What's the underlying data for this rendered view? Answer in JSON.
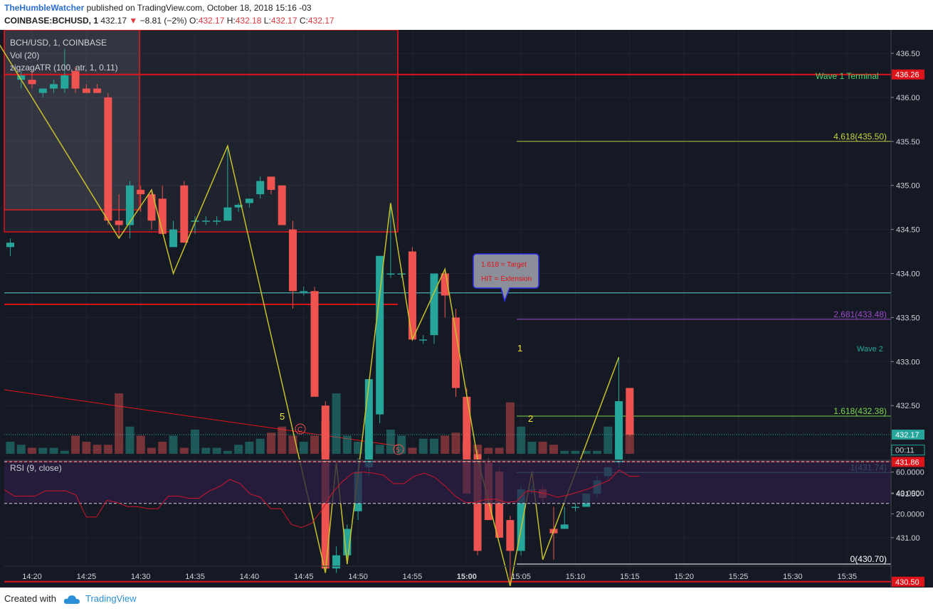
{
  "header": {
    "author": "TheHumbleWatcher",
    "published": "published on TradingView.com, October 18, 2018 15:16 -03",
    "symbol": "COINBASE:BCHUSD, 1",
    "price": "432.17",
    "change": "−8.81 (−2%)",
    "o_label": "O:",
    "o": "432.17",
    "h_label": "H:",
    "h": "432.18",
    "l_label": "L:",
    "l": "432.17",
    "c_label": "C:",
    "c": "432.17"
  },
  "legend": {
    "main": "BCH/USD, 1, COINBASE",
    "vol": "Vol (20)",
    "zigzag": "zigzagATR (100, atr, 1, 0.11)",
    "rsi": "RSI (9, close)"
  },
  "footer": {
    "created": "Created with",
    "brand": "TradingView"
  },
  "colors": {
    "bg": "#151924",
    "up": "#26a69a",
    "down": "#ef5350",
    "zigzag": "#c8c02c",
    "red_line": "#e0131a",
    "cyan": "#59cccc",
    "fib_green": "#7ed34c",
    "fib_olive": "#b6c53a",
    "fib_purple": "#9a4ac8",
    "rsi_band": "#2a1d42",
    "rsi_line": "#d0142c",
    "axis_text": "#cfd2d8"
  },
  "chart_data": [
    {
      "type": "candlestick",
      "x_labels": [
        "14:20",
        "14:25",
        "14:30",
        "14:35",
        "14:40",
        "14:45",
        "14:50",
        "14:55",
        "15:00",
        "15:05",
        "15:10",
        "15:15",
        "15:20",
        "15:25",
        "15:30",
        "15:35"
      ],
      "y_ticks": [
        "436.50",
        "436.00",
        "435.50",
        "435.00",
        "434.50",
        "434.00",
        "433.50",
        "433.00",
        "432.50",
        "432.00",
        "431.50",
        "431.00"
      ],
      "ylim": [
        430.2,
        436.9
      ],
      "candles": [
        {
          "t": "14:18",
          "o": 434.3,
          "h": 434.4,
          "l": 434.2,
          "c": 434.35
        },
        {
          "t": "14:19",
          "o": 436.2,
          "h": 436.3,
          "l": 436.1,
          "c": 436.25
        },
        {
          "t": "14:20",
          "o": 436.2,
          "h": 436.3,
          "l": 436.1,
          "c": 436.15
        },
        {
          "t": "14:21",
          "o": 436.05,
          "h": 436.1,
          "l": 436.0,
          "c": 436.1
        },
        {
          "t": "14:22",
          "o": 436.1,
          "h": 436.2,
          "l": 436.05,
          "c": 436.15
        },
        {
          "t": "14:23",
          "o": 436.1,
          "h": 436.55,
          "l": 436.05,
          "c": 436.25
        },
        {
          "t": "14:24",
          "o": 436.3,
          "h": 436.35,
          "l": 436.05,
          "c": 436.1
        },
        {
          "t": "14:25",
          "o": 436.1,
          "h": 436.15,
          "l": 436.05,
          "c": 436.05
        },
        {
          "t": "14:26",
          "o": 436.1,
          "h": 436.15,
          "l": 436.05,
          "c": 436.05
        },
        {
          "t": "14:27",
          "o": 436.0,
          "h": 436.05,
          "l": 434.55,
          "c": 434.6
        },
        {
          "t": "14:28",
          "o": 434.6,
          "h": 434.9,
          "l": 434.4,
          "c": 434.55
        },
        {
          "t": "14:29",
          "o": 434.55,
          "h": 435.05,
          "l": 434.4,
          "c": 435.0
        },
        {
          "t": "14:30",
          "o": 434.95,
          "h": 435.0,
          "l": 434.7,
          "c": 434.9
        },
        {
          "t": "14:31",
          "o": 434.9,
          "h": 434.95,
          "l": 434.5,
          "c": 434.6
        },
        {
          "t": "14:32",
          "o": 434.85,
          "h": 435.0,
          "l": 434.45,
          "c": 434.45
        },
        {
          "t": "14:33",
          "o": 434.3,
          "h": 434.6,
          "l": 434.3,
          "c": 434.5
        },
        {
          "t": "14:34",
          "o": 435.0,
          "h": 435.05,
          "l": 434.35,
          "c": 434.35
        },
        {
          "t": "14:35",
          "o": 434.6,
          "h": 434.65,
          "l": 434.45,
          "c": 434.6
        },
        {
          "t": "14:36",
          "o": 434.6,
          "h": 434.65,
          "l": 434.55,
          "c": 434.6
        },
        {
          "t": "14:37",
          "o": 434.6,
          "h": 434.65,
          "l": 434.55,
          "c": 434.6
        },
        {
          "t": "14:38",
          "o": 434.6,
          "h": 435.45,
          "l": 434.6,
          "c": 434.75
        },
        {
          "t": "14:39",
          "o": 434.75,
          "h": 434.8,
          "l": 434.7,
          "c": 434.78
        },
        {
          "t": "14:40",
          "o": 434.8,
          "h": 434.85,
          "l": 434.75,
          "c": 434.85
        },
        {
          "t": "14:41",
          "o": 434.9,
          "h": 435.1,
          "l": 434.85,
          "c": 435.05
        },
        {
          "t": "14:42",
          "o": 435.1,
          "h": 435.1,
          "l": 434.9,
          "c": 434.95
        },
        {
          "t": "14:43",
          "o": 435.0,
          "h": 435.0,
          "l": 434.6,
          "c": 434.55
        },
        {
          "t": "14:44",
          "o": 434.5,
          "h": 434.6,
          "l": 433.6,
          "c": 433.8
        },
        {
          "t": "14:45",
          "o": 433.8,
          "h": 433.85,
          "l": 433.75,
          "c": 433.8
        },
        {
          "t": "14:46",
          "o": 433.8,
          "h": 433.85,
          "l": 432.6,
          "c": 432.6
        },
        {
          "t": "14:47",
          "o": 432.5,
          "h": 432.55,
          "l": 430.65,
          "c": 430.65
        },
        {
          "t": "14:48",
          "o": 430.65,
          "h": 430.9,
          "l": 430.6,
          "c": 430.8
        },
        {
          "t": "14:49",
          "o": 430.8,
          "h": 431.15,
          "l": 430.7,
          "c": 431.1
        },
        {
          "t": "14:50",
          "o": 431.3,
          "h": 431.9,
          "l": 431.2,
          "c": 431.75
        },
        {
          "t": "14:51",
          "o": 431.8,
          "h": 432.8,
          "l": 431.7,
          "c": 432.8
        },
        {
          "t": "14:52",
          "o": 432.4,
          "h": 434.2,
          "l": 432.3,
          "c": 434.2
        },
        {
          "t": "14:53",
          "o": 434.0,
          "h": 434.8,
          "l": 433.95,
          "c": 434.0
        },
        {
          "t": "14:54",
          "o": 434.0,
          "h": 434.05,
          "l": 433.95,
          "c": 434.0
        },
        {
          "t": "14:55",
          "o": 434.25,
          "h": 434.3,
          "l": 433.25,
          "c": 433.25
        },
        {
          "t": "14:56",
          "o": 433.25,
          "h": 433.3,
          "l": 433.2,
          "c": 433.25
        },
        {
          "t": "14:57",
          "o": 433.3,
          "h": 434.0,
          "l": 433.2,
          "c": 434.0
        },
        {
          "t": "14:58",
          "o": 434.0,
          "h": 434.05,
          "l": 433.5,
          "c": 433.75
        },
        {
          "t": "14:59",
          "o": 433.5,
          "h": 433.6,
          "l": 432.6,
          "c": 432.7
        },
        {
          "t": "15:00",
          "o": 432.6,
          "h": 432.7,
          "l": 431.5,
          "c": 431.5
        },
        {
          "t": "15:01",
          "o": 431.95,
          "h": 432.0,
          "l": 430.8,
          "c": 430.85
        },
        {
          "t": "15:02",
          "o": 431.85,
          "h": 431.9,
          "l": 431.2,
          "c": 431.2
        },
        {
          "t": "15:03",
          "o": 431.75,
          "h": 431.8,
          "l": 431.0,
          "c": 431.0
        },
        {
          "t": "15:04",
          "o": 431.2,
          "h": 431.25,
          "l": 430.45,
          "c": 430.85
        },
        {
          "t": "15:05",
          "o": 430.85,
          "h": 431.6,
          "l": 430.8,
          "c": 431.55
        },
        {
          "t": "15:06",
          "o": 431.55,
          "h": 431.6,
          "l": 431.5,
          "c": 431.55
        },
        {
          "t": "15:07",
          "o": 431.55,
          "h": 431.6,
          "l": 431.4,
          "c": 431.45
        },
        {
          "t": "15:08",
          "o": 431.1,
          "h": 431.35,
          "l": 430.75,
          "c": 431.05
        },
        {
          "t": "15:09",
          "o": 431.1,
          "h": 431.35,
          "l": 431.1,
          "c": 431.15
        },
        {
          "t": "15:10",
          "o": 431.35,
          "h": 431.4,
          "l": 431.3,
          "c": 431.35
        },
        {
          "t": "15:11",
          "o": 431.35,
          "h": 431.5,
          "l": 431.35,
          "c": 431.5
        },
        {
          "t": "15:12",
          "o": 431.5,
          "h": 431.7,
          "l": 431.45,
          "c": 431.65
        },
        {
          "t": "15:13",
          "o": 431.7,
          "h": 431.8,
          "l": 431.65,
          "c": 431.8
        },
        {
          "t": "15:14",
          "o": 431.85,
          "h": 433.05,
          "l": 431.8,
          "c": 432.55
        },
        {
          "t": "15:15",
          "o": 432.7,
          "h": 432.7,
          "l": 432.15,
          "c": 432.17
        }
      ]
    },
    {
      "type": "line",
      "name": "zigzagATR",
      "points": [
        [
          "14:17",
          436.6
        ],
        [
          "14:28",
          434.4
        ],
        [
          "14:31",
          434.95
        ],
        [
          "14:33",
          434.0
        ],
        [
          "14:38",
          435.45
        ],
        [
          "14:47",
          430.6
        ],
        [
          "14:48",
          431.85
        ],
        [
          "14:49",
          430.7
        ],
        [
          "14:53",
          434.8
        ],
        [
          "14:55",
          433.25
        ],
        [
          "14:58",
          434.05
        ],
        [
          "15:01",
          431.9
        ],
        [
          "15:04",
          430.45
        ],
        [
          "15:06",
          431.75
        ],
        [
          "15:07",
          430.75
        ],
        [
          "15:14",
          433.05
        ]
      ]
    },
    {
      "type": "levels",
      "price_axis_labels": [
        "436.26",
        "432.17",
        "00:11",
        "431.86",
        "430.50"
      ],
      "lines": [
        {
          "price": 436.26,
          "kind": "horizontal"
        },
        {
          "price": 433.65,
          "kind": "horizontal"
        },
        {
          "price": 431.86,
          "kind": "horizontal"
        },
        {
          "price": 430.5,
          "kind": "horizontal"
        },
        {
          "price": 433.78,
          "kind": "horizontal"
        },
        {
          "price": 435.5,
          "text": "4.618(435.50)"
        },
        {
          "price": 433.48,
          "text": "2.681(433.48)"
        },
        {
          "price": 432.38,
          "text": "1.618(432.38)"
        },
        {
          "price": 431.74,
          "text": "1(431.74)"
        },
        {
          "price": 430.7,
          "text": "0(430.70)"
        }
      ],
      "annotations": [
        "Wave 1 Terminal",
        "Wave 2",
        "1",
        "2",
        "5",
        "5",
        "C"
      ],
      "callout": {
        "line1": "1.618 = Target",
        "line2": "HIT = Extension"
      }
    },
    {
      "type": "bar",
      "name": "Vol (20)",
      "values": [
        0.2,
        0.15,
        0.1,
        0.1,
        0.1,
        0.05,
        0.3,
        0.2,
        0.15,
        0.15,
        1.0,
        0.45,
        0.3,
        0.1,
        0.2,
        0.3,
        0.1,
        0.4,
        0.1,
        0.1,
        0.05,
        0.15,
        0.2,
        0.25,
        0.35,
        0.45,
        0.3,
        0.2,
        0.3,
        0.55,
        1.0,
        0.3,
        0.2,
        0.2,
        0.15,
        0.4,
        0.3,
        0.1,
        0.25,
        0.25,
        0.3,
        0.35,
        0.2,
        0.15,
        0.1,
        0.1,
        0.85,
        0.45,
        0.2,
        0.2,
        0.15,
        0.05,
        0.05,
        0.05,
        0.05,
        0.45,
        0.05,
        0.6,
        0.6
      ]
    },
    {
      "type": "line",
      "name": "RSI (9, close)",
      "y_ticks": [
        "60.0000",
        "40.0000",
        "20.0000"
      ],
      "ylim": [
        5,
        72
      ],
      "bands": [
        70,
        30
      ],
      "values": [
        43,
        37,
        37,
        37,
        42,
        42,
        42,
        38,
        17,
        17,
        33,
        31,
        27,
        27,
        25,
        25,
        37,
        37,
        35,
        35,
        42,
        46,
        53,
        49,
        39,
        36,
        25,
        25,
        10,
        7,
        11,
        24,
        40,
        51,
        59,
        60,
        59,
        57,
        49,
        49,
        56,
        59,
        55,
        47,
        37,
        31,
        31,
        34,
        34,
        31,
        32,
        42,
        41,
        39,
        36,
        38,
        41,
        44,
        48,
        52,
        62,
        56,
        56
      ]
    }
  ]
}
